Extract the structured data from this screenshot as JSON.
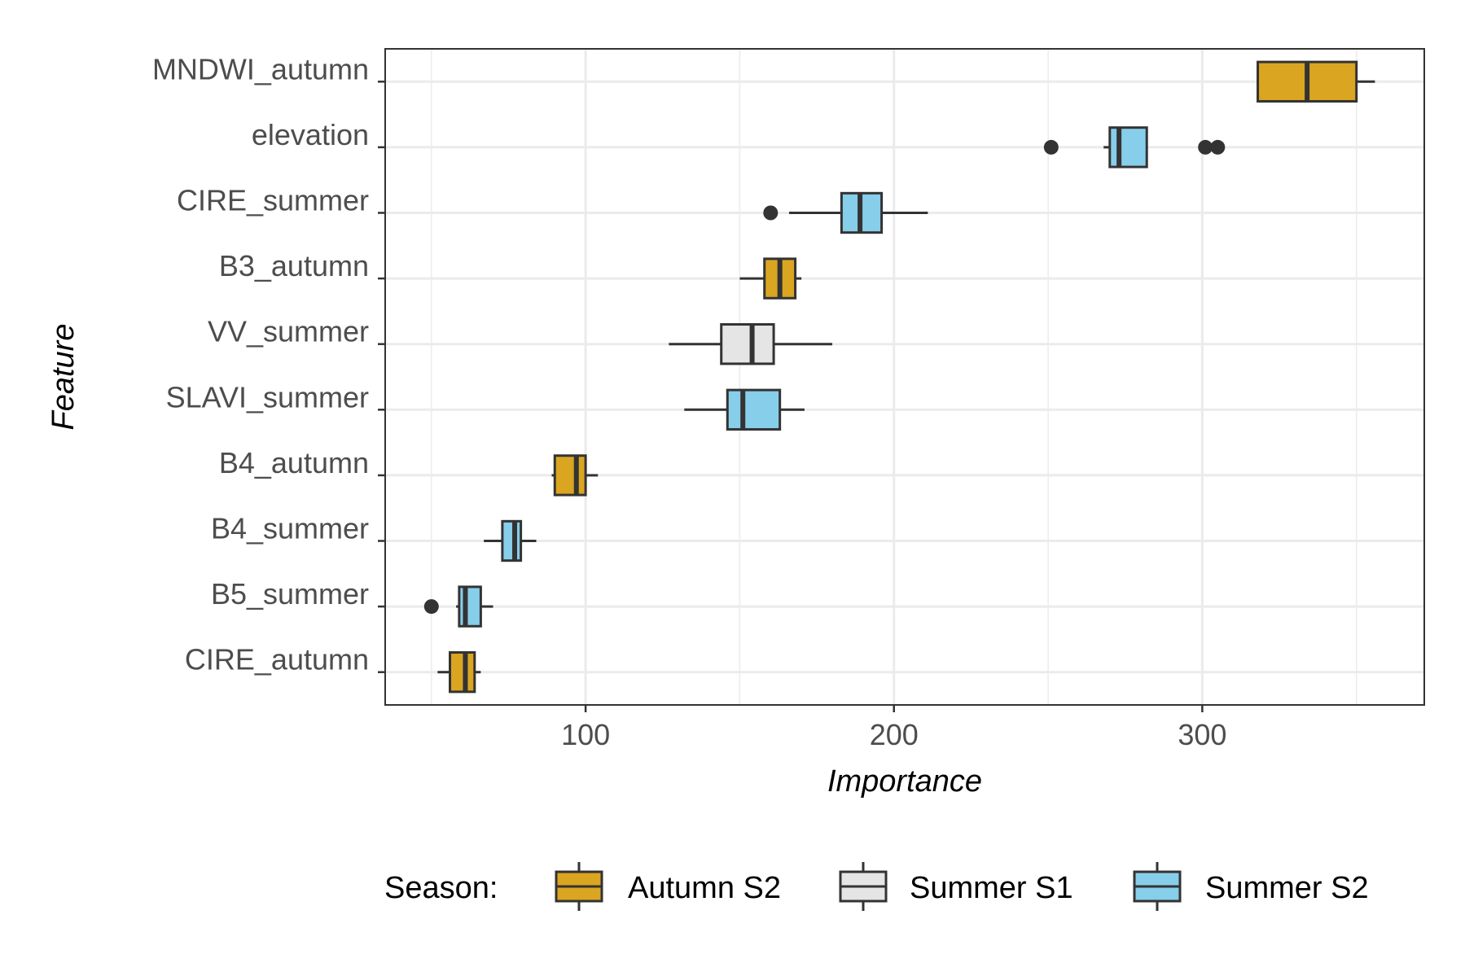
{
  "chart_data": {
    "type": "boxplot",
    "orientation": "horizontal",
    "xlabel": "Importance",
    "ylabel": "Feature",
    "xlim": [
      35,
      372
    ],
    "x_ticks": [
      100,
      200,
      300
    ],
    "grid": true,
    "legend_position": "bottom",
    "legend_title": "Season:",
    "legend": [
      {
        "name": "Autumn S2",
        "color": "#DAA520"
      },
      {
        "name": "Summer S1",
        "color": "#E5E5E5"
      },
      {
        "name": "Summer S2",
        "color": "#87CEEB"
      }
    ],
    "features": [
      {
        "label": "MNDWI_autumn",
        "season": "Autumn S2",
        "whisker_low": 318,
        "q1": 318,
        "median": 334,
        "q3": 350,
        "whisker_high": 356,
        "outliers": []
      },
      {
        "label": "elevation",
        "season": "Summer S2",
        "whisker_low": 268,
        "q1": 270,
        "median": 273,
        "q3": 282,
        "whisker_high": 282,
        "outliers": [
          251,
          301,
          305
        ]
      },
      {
        "label": "CIRE_summer",
        "season": "Summer S2",
        "whisker_low": 166,
        "q1": 183,
        "median": 189,
        "q3": 196,
        "whisker_high": 211,
        "outliers": [
          160
        ]
      },
      {
        "label": "B3_autumn",
        "season": "Autumn S2",
        "whisker_low": 150,
        "q1": 158,
        "median": 163,
        "q3": 168,
        "whisker_high": 170,
        "outliers": []
      },
      {
        "label": "VV_summer",
        "season": "Summer S1",
        "whisker_low": 127,
        "q1": 144,
        "median": 154,
        "q3": 161,
        "whisker_high": 180,
        "outliers": []
      },
      {
        "label": "SLAVI_summer",
        "season": "Summer S2",
        "whisker_low": 132,
        "q1": 146,
        "median": 151,
        "q3": 163,
        "whisker_high": 171,
        "outliers": []
      },
      {
        "label": "B4_autumn",
        "season": "Autumn S2",
        "whisker_low": 89,
        "q1": 90,
        "median": 97,
        "q3": 100,
        "whisker_high": 104,
        "outliers": []
      },
      {
        "label": "B4_summer",
        "season": "Summer S2",
        "whisker_low": 67,
        "q1": 73,
        "median": 77,
        "q3": 79,
        "whisker_high": 84,
        "outliers": []
      },
      {
        "label": "B5_summer",
        "season": "Summer S2",
        "whisker_low": 58,
        "q1": 59,
        "median": 61,
        "q3": 66,
        "whisker_high": 70,
        "outliers": [
          50
        ]
      },
      {
        "label": "CIRE_autumn",
        "season": "Autumn S2",
        "whisker_low": 52,
        "q1": 56,
        "median": 61,
        "q3": 64,
        "whisker_high": 66,
        "outliers": []
      }
    ]
  }
}
